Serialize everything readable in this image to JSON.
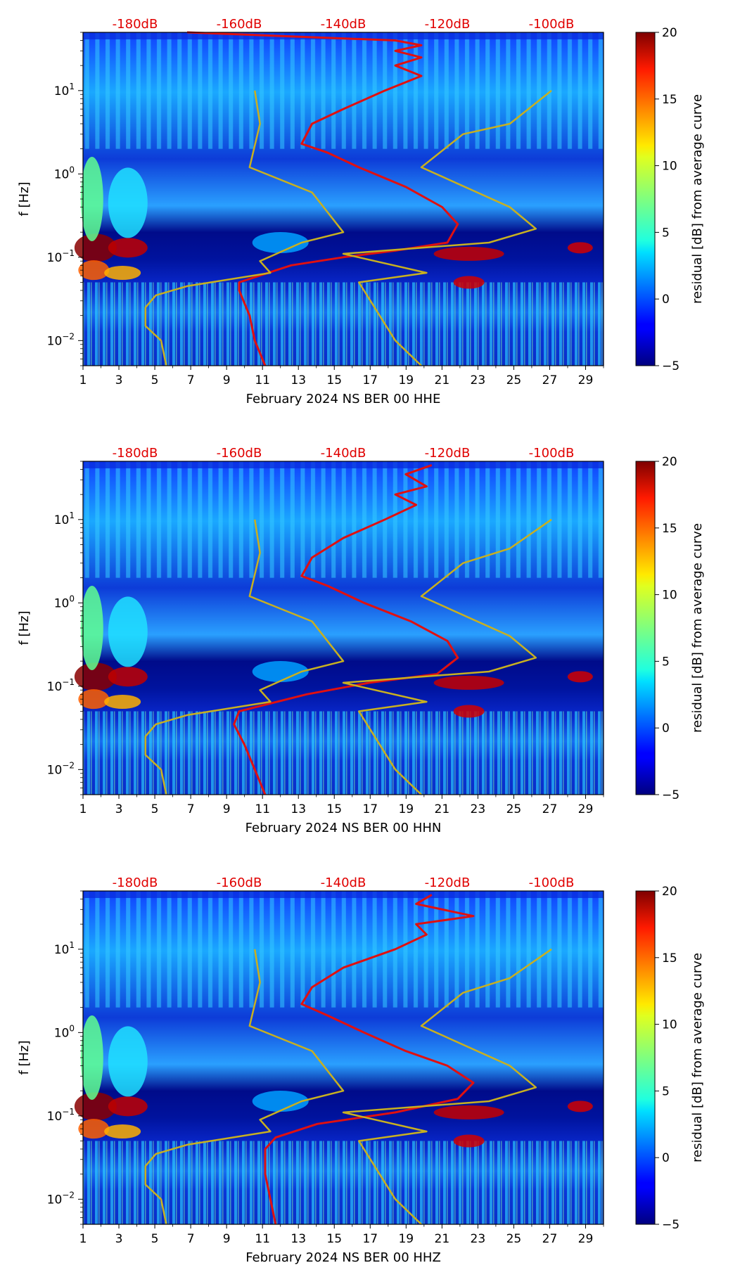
{
  "chart_data": [
    {
      "type": "heatmap",
      "title": "",
      "xlabel": "February 2024 NS BER 00 HHE",
      "ylabel": "f [Hz]",
      "x_ticks": [
        1,
        3,
        5,
        7,
        9,
        11,
        13,
        15,
        17,
        19,
        21,
        23,
        25,
        27,
        29
      ],
      "x_range": [
        1,
        30
      ],
      "y_scale": "log",
      "y_range": [
        0.005,
        50
      ],
      "y_ticks": [
        {
          "value": 0.01,
          "base": "10",
          "exp": "−2"
        },
        {
          "value": 0.1,
          "base": "10",
          "exp": "−1"
        },
        {
          "value": 1,
          "base": "10",
          "exp": "0"
        },
        {
          "value": 10,
          "base": "10",
          "exp": "1"
        }
      ],
      "top_axis_label_color": "#e00000",
      "top_axis_ticks": [
        "-180dB",
        "-160dB",
        "-140dB",
        "-120dB",
        "-100dB"
      ],
      "top_axis_values": [
        -180,
        -160,
        -140,
        -120,
        -100
      ],
      "colorbar": {
        "label": "residual [dB] from average curve",
        "range": [
          -5,
          20
        ],
        "ticks": [
          -5,
          0,
          5,
          10,
          15,
          20
        ],
        "colormap": "jet"
      },
      "series": [
        {
          "color": "#e01010",
          "points": [
            [
              -170,
              50
            ],
            [
              -130,
              40
            ],
            [
              -125,
              35
            ],
            [
              -130,
              30
            ],
            [
              -125,
              25
            ],
            [
              -130,
              20
            ],
            [
              -125,
              15
            ],
            [
              -132,
              10
            ],
            [
              -140,
              6
            ],
            [
              -146,
              4
            ],
            [
              -148,
              2.3
            ],
            [
              -143,
              1.8
            ],
            [
              -137,
              1.2
            ],
            [
              -128,
              0.7
            ],
            [
              -121,
              0.4
            ],
            [
              -118,
              0.25
            ],
            [
              -120,
              0.15
            ],
            [
              -130,
              0.12
            ],
            [
              -140,
              0.1
            ],
            [
              -150,
              0.08
            ],
            [
              -160,
              0.05
            ],
            [
              -160,
              0.04
            ],
            [
              -158,
              0.02
            ],
            [
              -157,
              0.01
            ],
            [
              -155,
              0.005
            ]
          ]
        },
        {
          "color": "#c8b020",
          "points": [
            [
              -157,
              10
            ],
            [
              -156,
              4
            ],
            [
              -158,
              1.2
            ],
            [
              -146,
              0.6
            ],
            [
              -140,
              0.2
            ],
            [
              -148,
              0.15
            ],
            [
              -156,
              0.09
            ],
            [
              -154,
              0.065
            ],
            [
              -170,
              0.045
            ],
            [
              -176,
              0.035
            ],
            [
              -178,
              0.025
            ],
            [
              -178,
              0.015
            ],
            [
              -175,
              0.01
            ],
            [
              -174,
              0.005
            ]
          ]
        },
        {
          "color": "#c8b020",
          "points": [
            [
              -100,
              10
            ],
            [
              -108,
              4
            ],
            [
              -117,
              3
            ],
            [
              -125,
              1.2
            ],
            [
              -108,
              0.4
            ],
            [
              -103,
              0.22
            ],
            [
              -112,
              0.15
            ],
            [
              -140,
              0.11
            ],
            [
              -124,
              0.065
            ],
            [
              -137,
              0.05
            ],
            [
              -130,
              0.01
            ],
            [
              -125,
              0.005
            ]
          ]
        }
      ]
    },
    {
      "type": "heatmap",
      "title": "",
      "xlabel": "February 2024 NS BER 00 HHN",
      "ylabel": "f [Hz]",
      "x_ticks": [
        1,
        3,
        5,
        7,
        9,
        11,
        13,
        15,
        17,
        19,
        21,
        23,
        25,
        27,
        29
      ],
      "x_range": [
        1,
        30
      ],
      "y_scale": "log",
      "y_range": [
        0.005,
        50
      ],
      "y_ticks": [
        {
          "value": 0.01,
          "base": "10",
          "exp": "−2"
        },
        {
          "value": 0.1,
          "base": "10",
          "exp": "−1"
        },
        {
          "value": 1,
          "base": "10",
          "exp": "0"
        },
        {
          "value": 10,
          "base": "10",
          "exp": "1"
        }
      ],
      "top_axis_label_color": "#e00000",
      "top_axis_ticks": [
        "-180dB",
        "-160dB",
        "-140dB",
        "-120dB",
        "-100dB"
      ],
      "top_axis_values": [
        -180,
        -160,
        -140,
        -120,
        -100
      ],
      "colorbar": {
        "label": "residual [dB] from average curve",
        "range": [
          -5,
          20
        ],
        "ticks": [
          -5,
          0,
          5,
          10,
          15,
          20
        ],
        "colormap": "jet"
      },
      "series": [
        {
          "color": "#e01010",
          "points": [
            [
              -123,
              45
            ],
            [
              -128,
              35
            ],
            [
              -124,
              25
            ],
            [
              -130,
              20
            ],
            [
              -126,
              15
            ],
            [
              -132,
              10
            ],
            [
              -140,
              6
            ],
            [
              -146,
              3.5
            ],
            [
              -148,
              2.1
            ],
            [
              -143,
              1.6
            ],
            [
              -136,
              1.0
            ],
            [
              -127,
              0.6
            ],
            [
              -120,
              0.35
            ],
            [
              -118,
              0.22
            ],
            [
              -122,
              0.14
            ],
            [
              -135,
              0.11
            ],
            [
              -147,
              0.08
            ],
            [
              -160,
              0.05
            ],
            [
              -161,
              0.035
            ],
            [
              -159,
              0.02
            ],
            [
              -157,
              0.01
            ],
            [
              -155,
              0.005
            ]
          ]
        },
        {
          "color": "#c8b020",
          "points": [
            [
              -157,
              10
            ],
            [
              -156,
              4
            ],
            [
              -158,
              1.2
            ],
            [
              -146,
              0.6
            ],
            [
              -140,
              0.2
            ],
            [
              -148,
              0.15
            ],
            [
              -156,
              0.09
            ],
            [
              -154,
              0.065
            ],
            [
              -170,
              0.045
            ],
            [
              -176,
              0.035
            ],
            [
              -178,
              0.025
            ],
            [
              -178,
              0.015
            ],
            [
              -175,
              0.01
            ],
            [
              -174,
              0.005
            ]
          ]
        },
        {
          "color": "#c8b020",
          "points": [
            [
              -100,
              10
            ],
            [
              -108,
              4.5
            ],
            [
              -117,
              3
            ],
            [
              -125,
              1.2
            ],
            [
              -108,
              0.4
            ],
            [
              -103,
              0.22
            ],
            [
              -112,
              0.15
            ],
            [
              -140,
              0.11
            ],
            [
              -124,
              0.065
            ],
            [
              -137,
              0.05
            ],
            [
              -130,
              0.01
            ],
            [
              -125,
              0.005
            ]
          ]
        }
      ]
    },
    {
      "type": "heatmap",
      "title": "",
      "xlabel": "February 2024 NS BER 00 HHZ",
      "ylabel": "f [Hz]",
      "x_ticks": [
        1,
        3,
        5,
        7,
        9,
        11,
        13,
        15,
        17,
        19,
        21,
        23,
        25,
        27,
        29
      ],
      "x_range": [
        1,
        30
      ],
      "y_scale": "log",
      "y_range": [
        0.005,
        50
      ],
      "y_ticks": [
        {
          "value": 0.01,
          "base": "10",
          "exp": "−2"
        },
        {
          "value": 0.1,
          "base": "10",
          "exp": "−1"
        },
        {
          "value": 1,
          "base": "10",
          "exp": "0"
        },
        {
          "value": 10,
          "base": "10",
          "exp": "1"
        }
      ],
      "top_axis_label_color": "#e00000",
      "top_axis_ticks": [
        "-180dB",
        "-160dB",
        "-140dB",
        "-120dB",
        "-100dB"
      ],
      "top_axis_values": [
        -180,
        -160,
        -140,
        -120,
        -100
      ],
      "colorbar": {
        "label": "residual [dB] from average curve",
        "range": [
          -5,
          20
        ],
        "ticks": [
          -5,
          0,
          5,
          10,
          15,
          20
        ],
        "colormap": "jet"
      },
      "series": [
        {
          "color": "#e01010",
          "points": [
            [
              -123,
              45
            ],
            [
              -126,
              35
            ],
            [
              -115,
              25
            ],
            [
              -126,
              20
            ],
            [
              -124,
              15
            ],
            [
              -130,
              10
            ],
            [
              -140,
              6
            ],
            [
              -146,
              3.5
            ],
            [
              -148,
              2.2
            ],
            [
              -143,
              1.6
            ],
            [
              -136,
              1.0
            ],
            [
              -128,
              0.6
            ],
            [
              -120,
              0.4
            ],
            [
              -115,
              0.25
            ],
            [
              -118,
              0.16
            ],
            [
              -130,
              0.11
            ],
            [
              -145,
              0.08
            ],
            [
              -153,
              0.055
            ],
            [
              -155,
              0.04
            ],
            [
              -155,
              0.02
            ],
            [
              -154,
              0.01
            ],
            [
              -153,
              0.005
            ]
          ]
        },
        {
          "color": "#c8b020",
          "points": [
            [
              -157,
              10
            ],
            [
              -156,
              4
            ],
            [
              -158,
              1.2
            ],
            [
              -146,
              0.6
            ],
            [
              -140,
              0.2
            ],
            [
              -148,
              0.15
            ],
            [
              -156,
              0.09
            ],
            [
              -154,
              0.065
            ],
            [
              -170,
              0.045
            ],
            [
              -176,
              0.035
            ],
            [
              -178,
              0.025
            ],
            [
              -178,
              0.015
            ],
            [
              -175,
              0.01
            ],
            [
              -174,
              0.005
            ]
          ]
        },
        {
          "color": "#c8b020",
          "points": [
            [
              -100,
              10
            ],
            [
              -108,
              4.5
            ],
            [
              -117,
              3
            ],
            [
              -125,
              1.2
            ],
            [
              -108,
              0.4
            ],
            [
              -103,
              0.22
            ],
            [
              -112,
              0.15
            ],
            [
              -140,
              0.11
            ],
            [
              -124,
              0.065
            ],
            [
              -137,
              0.05
            ],
            [
              -130,
              0.01
            ],
            [
              -125,
              0.005
            ]
          ]
        }
      ]
    }
  ]
}
